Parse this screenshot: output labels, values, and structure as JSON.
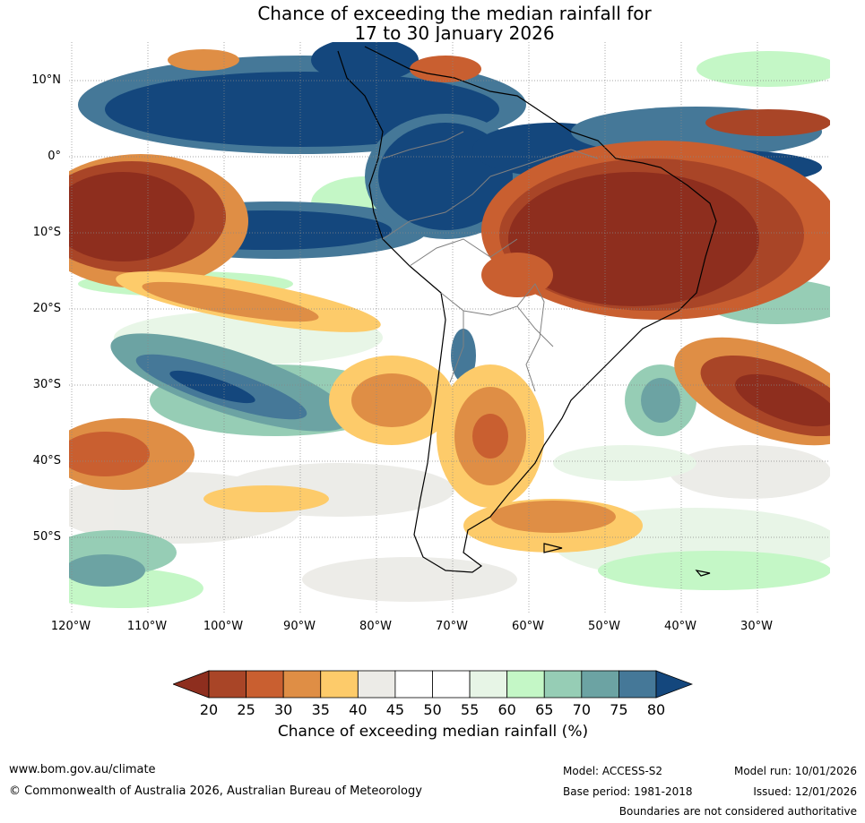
{
  "title": {
    "line1": "Chance of exceeding the median rainfall for",
    "line2": "17 to 30 January 2026"
  },
  "map": {
    "region": "South America",
    "lat_labels": [
      "10°N",
      "0°",
      "10°S",
      "20°S",
      "30°S",
      "40°S",
      "50°S"
    ],
    "lon_labels": [
      "120°W",
      "110°W",
      "100°W",
      "90°W",
      "80°W",
      "70°W",
      "60°W",
      "50°W",
      "40°W",
      "30°W"
    ],
    "colors": {
      "c20": "#8e2e1e",
      "c25": "#a94527",
      "c30": "#c95f30",
      "c35": "#df8e45",
      "c40": "#fdcb6a",
      "c45": "#ecebe7",
      "c50": "#ffffff",
      "c60": "#e7f5e6",
      "c65": "#c4f7c6",
      "c70": "#96cdb5",
      "c75": "#6ca3a3",
      "c80": "#457898",
      "c85": "#14477d"
    }
  },
  "colorbar": {
    "ticks": [
      "20",
      "25",
      "30",
      "35",
      "40",
      "45",
      "50",
      "55",
      "60",
      "65",
      "70",
      "75",
      "80"
    ],
    "colors": [
      "#a94527",
      "#c95f30",
      "#df8e45",
      "#fdcb6a",
      "#ecebe7",
      "#ffffff",
      "#ffffff",
      "#e7f5e6",
      "#c4f7c6",
      "#96cdb5",
      "#6ca3a3",
      "#457898"
    ],
    "under_color": "#8e2e1e",
    "over_color": "#14477d",
    "label": "Chance of exceeding median rainfall (%)"
  },
  "footer": {
    "website": "www.bom.gov.au/climate",
    "copyright": "© Commonwealth of Australia 2026, Australian Bureau of Meteorology",
    "model": "Model: ACCESS-S2",
    "base_period": "Base period: 1981-2018",
    "model_run": "Model run: 10/01/2026",
    "issued": "Issued: 12/01/2026",
    "disclaimer": "Boundaries are not considered authoritative"
  }
}
